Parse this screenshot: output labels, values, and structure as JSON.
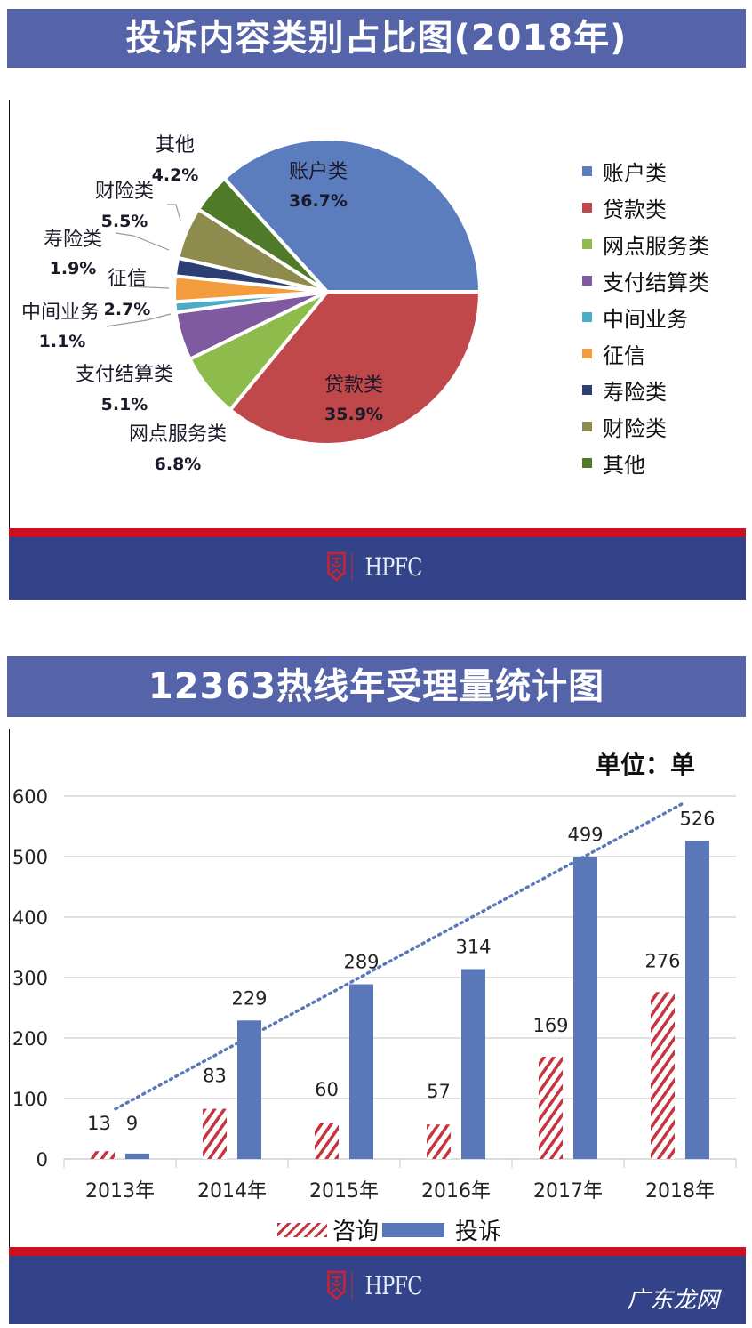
{
  "chart_data": [
    {
      "type": "pie",
      "title": "投诉内容类别占比图(2018年)",
      "categories": [
        "账户类",
        "贷款类",
        "网点服务类",
        "支付结算类",
        "中间业务",
        "征信",
        "寿险类",
        "财险类",
        "其他"
      ],
      "values": [
        36.7,
        35.9,
        6.8,
        5.1,
        1.1,
        2.7,
        1.9,
        5.5,
        4.2
      ],
      "value_labels": [
        "36.7%",
        "35.9%",
        "6.8%",
        "5.1%",
        "1.1%",
        "2.7%",
        "1.9%",
        "5.5%",
        "4.2%"
      ],
      "colors": [
        "#5b7dbd",
        "#c0474a",
        "#8dbb4c",
        "#7f5aa0",
        "#4bacc6",
        "#f39c3d",
        "#2c3e73",
        "#8e8b4e",
        "#4f7a28"
      ],
      "legend_position": "right"
    },
    {
      "type": "bar",
      "title": "12363热线年受理量统计图",
      "unit_label": "单位：单",
      "categories": [
        "2013年",
        "2014年",
        "2015年",
        "2016年",
        "2017年",
        "2018年"
      ],
      "series": [
        {
          "name": "咨询",
          "values": [
            13,
            83,
            60,
            57,
            169,
            276
          ],
          "color": "#c8333d",
          "pattern": "hatched"
        },
        {
          "name": "投诉",
          "values": [
            9,
            229,
            289,
            314,
            499,
            526
          ],
          "color": "#5a78b8",
          "pattern": "solid"
        }
      ],
      "trendline": {
        "series": "投诉",
        "style": "dotted",
        "color": "#5a78b8"
      },
      "yticks": [
        0,
        100,
        200,
        300,
        400,
        500,
        600
      ],
      "ylim": [
        0,
        600
      ],
      "xlabel": "",
      "ylabel": "",
      "grid": true,
      "legend_position": "bottom"
    }
  ],
  "header1": {
    "title": "投诉内容类别占比图(2018年)"
  },
  "header2": {
    "title": "12363热线年受理量统计图"
  },
  "pie": {
    "legend": [
      {
        "label": "账户类",
        "color": "#5b7dbd"
      },
      {
        "label": "贷款类",
        "color": "#c0474a"
      },
      {
        "label": "网点服务类",
        "color": "#8dbb4c"
      },
      {
        "label": "支付结算类",
        "color": "#7f5aa0"
      },
      {
        "label": "中间业务",
        "color": "#4bacc6"
      },
      {
        "label": "征信",
        "color": "#f39c3d"
      },
      {
        "label": "寿险类",
        "color": "#2c3e73"
      },
      {
        "label": "财险类",
        "color": "#8e8b4e"
      },
      {
        "label": "其他",
        "color": "#4f7a28"
      }
    ]
  },
  "bar": {
    "unit_label": "单位：单",
    "legend": [
      {
        "label": "咨询"
      },
      {
        "label": "投诉"
      }
    ]
  },
  "footer": {
    "logo_text": "HPFC",
    "watermark": "广东龙网"
  },
  "colors": {
    "banner": "#5563a8",
    "footer_blue": "#334389",
    "footer_red": "#d0101e"
  }
}
